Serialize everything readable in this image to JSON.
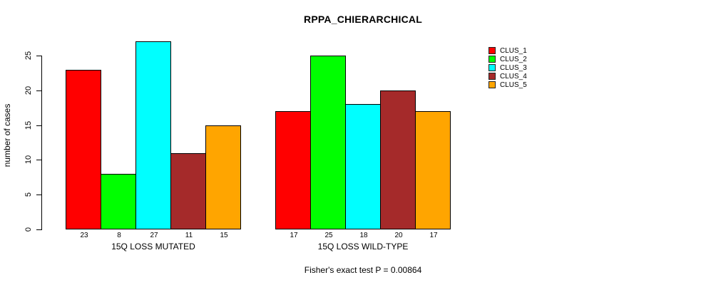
{
  "chart_data": {
    "type": "bar",
    "title": "RPPA_CHIERARCHICAL",
    "ylabel": "number of cases",
    "xlabel": "",
    "ylim": [
      0,
      27
    ],
    "yticks": [
      0,
      5,
      10,
      15,
      20,
      25
    ],
    "grid": false,
    "categories": [
      "CLUS_1",
      "CLUS_2",
      "CLUS_3",
      "CLUS_4",
      "CLUS_5"
    ],
    "colors": [
      "#FF0000",
      "#00FF00",
      "#00FFFF",
      "#A52A2A",
      "#FFA500"
    ],
    "groups": [
      {
        "label": "15Q LOSS MUTATED",
        "values": [
          23,
          8,
          27,
          11,
          15
        ]
      },
      {
        "label": "15Q LOSS WILD-TYPE",
        "values": [
          17,
          25,
          18,
          20,
          17
        ]
      }
    ],
    "bar_value_labels": [
      [
        23,
        8,
        27,
        11,
        15
      ],
      [
        17,
        25,
        18,
        20,
        17
      ]
    ],
    "legend": {
      "position": "right",
      "entries": [
        "CLUS_1",
        "CLUS_2",
        "CLUS_3",
        "CLUS_4",
        "CLUS_5"
      ]
    },
    "annotation": "Fisher's exact test P = 0.00864"
  }
}
